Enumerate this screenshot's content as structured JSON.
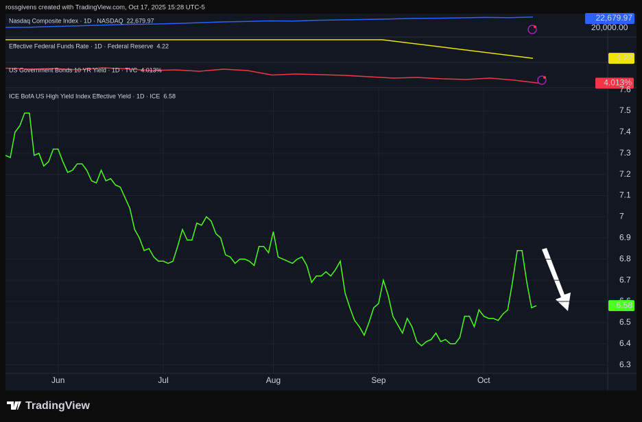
{
  "header": "rossgivens created with TradingView.com, Oct 17, 2025 15:28 UTC-5",
  "footer_brand": "TradingView",
  "chart_data": [
    {
      "type": "line",
      "title": "Nasdaq Composite Index · 1D · NASDAQ",
      "color": "#2962ff",
      "values": [
        20170,
        20200,
        20400,
        20550,
        20700,
        20900,
        20950,
        21100,
        21300,
        21500,
        21600,
        21750,
        21700,
        21900,
        22000,
        22100,
        22200,
        22350,
        22400,
        22500,
        22600,
        22550,
        22679.97
      ],
      "last_value_label": "22,679.97",
      "ylim": [
        18000,
        23500
      ],
      "yticks": [
        {
          "value": 20000,
          "label": "20,000.00"
        }
      ]
    },
    {
      "type": "line",
      "title": "Effective Federal Funds Rate · 1D · Federal Reserve",
      "color": "#f0e300",
      "values": [
        4.33,
        4.33,
        4.33,
        4.33,
        4.33,
        4.33,
        4.275,
        4.22
      ],
      "ylim": [
        4.2,
        4.342
      ]
    },
    {
      "type": "line",
      "title": "US Government Bonds 10 YR Yield · 1D · TVC",
      "color": "#f23645",
      "values": [
        4.45,
        4.42,
        4.44,
        4.4,
        4.46,
        4.43,
        4.38,
        4.4,
        4.36,
        4.42,
        4.38,
        4.25,
        4.28,
        4.26,
        4.24,
        4.2,
        4.16,
        4.18,
        4.14,
        4.12,
        4.16,
        4.1,
        4.013
      ],
      "last_value_label": "4.013%",
      "ylim": [
        3.9,
        4.6
      ]
    },
    {
      "type": "line",
      "title": "ICE BofA US High Yield Index Effective Yield · 1D · ICE",
      "color": "#4cff1f",
      "categories": [
        null,
        null,
        null,
        null,
        null,
        null,
        null,
        null,
        null,
        null,
        null,
        "Jun",
        null,
        null,
        null,
        null,
        null,
        null,
        null,
        null,
        null,
        null,
        null,
        null,
        null,
        null,
        null,
        null,
        null,
        null,
        null,
        null,
        null,
        "Jul",
        null,
        null,
        null,
        null,
        null,
        null,
        null,
        null,
        null,
        null,
        null,
        null,
        null,
        null,
        null,
        null,
        null,
        null,
        null,
        null,
        null,
        null,
        "Aug",
        null,
        null,
        null,
        null,
        null,
        null,
        null,
        null,
        null,
        null,
        null,
        null,
        null,
        null,
        null,
        null,
        null,
        null,
        null,
        null,
        null,
        "Sep",
        null,
        null,
        null,
        null,
        null,
        null,
        null,
        null,
        null,
        null,
        null,
        null,
        null,
        null,
        null,
        null,
        null,
        null,
        null,
        null,
        null,
        "Oct",
        null,
        null,
        null,
        null,
        null,
        null,
        null,
        null,
        null,
        null,
        null
      ],
      "values": [
        7.29,
        7.28,
        7.4,
        7.43,
        7.49,
        7.49,
        7.29,
        7.3,
        7.24,
        7.26,
        7.32,
        7.32,
        7.26,
        7.21,
        7.22,
        7.25,
        7.25,
        7.22,
        7.17,
        7.16,
        7.22,
        7.17,
        7.18,
        7.15,
        7.14,
        7.09,
        7.04,
        6.94,
        6.9,
        6.84,
        6.85,
        6.81,
        6.79,
        6.79,
        6.78,
        6.79,
        6.86,
        6.94,
        6.89,
        6.89,
        6.97,
        6.96,
        7.0,
        6.98,
        6.92,
        6.9,
        6.82,
        6.81,
        6.78,
        6.8,
        6.8,
        6.79,
        6.77,
        6.86,
        6.86,
        6.83,
        6.93,
        6.81,
        6.8,
        6.79,
        6.78,
        6.8,
        6.81,
        6.77,
        6.69,
        6.72,
        6.72,
        6.74,
        6.72,
        6.75,
        6.79,
        6.64,
        6.57,
        6.51,
        6.48,
        6.44,
        6.5,
        6.57,
        6.59,
        6.7,
        6.63,
        6.53,
        6.49,
        6.45,
        6.52,
        6.48,
        6.41,
        6.39,
        6.41,
        6.42,
        6.45,
        6.41,
        6.42,
        6.4,
        6.4,
        6.43,
        6.53,
        6.53,
        6.48,
        6.56,
        6.53,
        6.52,
        6.52,
        6.51,
        6.54,
        6.56,
        6.69,
        6.84,
        6.84,
        6.69,
        6.57,
        6.58
      ],
      "ylim": [
        6.26,
        7.61
      ],
      "yticks": [
        6.3,
        6.4,
        6.5,
        6.6,
        6.7,
        6.8,
        6.9,
        7,
        7.1,
        7.2,
        7.3,
        7.4,
        7.5,
        7.6
      ],
      "grid": true
    }
  ]
}
